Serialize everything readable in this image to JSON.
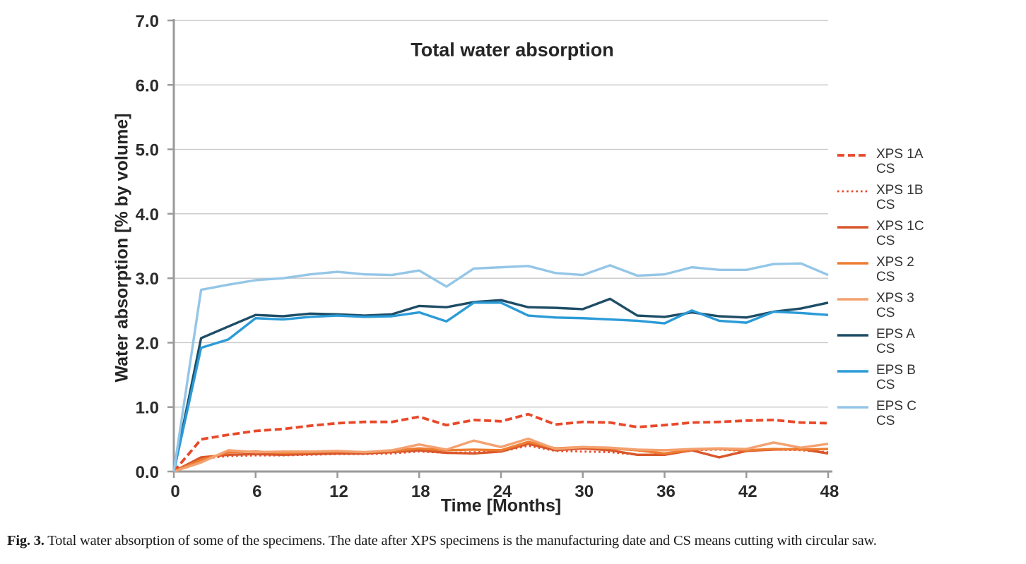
{
  "figure": {
    "caption_label": "Fig. 3.",
    "caption_text": " Total water absorption of some of the specimens. The date after XPS specimens is the manufacturing date and CS means cutting with circular saw."
  },
  "chart_data": {
    "type": "line",
    "title": "Total water absorption",
    "xlabel": "Time [Months]",
    "ylabel": "Water absorption [% by volume]",
    "xlim": [
      0,
      48
    ],
    "ylim": [
      0.0,
      7.0
    ],
    "x_ticks": [
      0,
      6,
      12,
      18,
      24,
      30,
      36,
      42,
      48
    ],
    "y_ticks": [
      "0.0",
      "1.0",
      "2.0",
      "3.0",
      "4.0",
      "5.0",
      "6.0",
      "7.0"
    ],
    "grid": "horizontal gridlines at every 1.0",
    "legend_position": "right",
    "grid_color": "#C7C7C7",
    "axis_color": "#9A9A9A",
    "text_color": "#2B2B2B",
    "x": [
      0,
      2,
      4,
      6,
      8,
      10,
      12,
      14,
      16,
      18,
      20,
      22,
      24,
      26,
      28,
      30,
      32,
      34,
      36,
      38,
      40,
      42,
      44,
      46,
      48
    ],
    "series": [
      {
        "id": "xps-1a",
        "label": "XPS 1A",
        "sublabel": "CS",
        "color": "#E8492A",
        "style": "dashed",
        "values": [
          0,
          0.5,
          0.57,
          0.63,
          0.66,
          0.71,
          0.75,
          0.77,
          0.77,
          0.85,
          0.72,
          0.8,
          0.78,
          0.89,
          0.73,
          0.77,
          0.76,
          0.69,
          0.72,
          0.76,
          0.77,
          0.79,
          0.8,
          0.76,
          0.75
        ]
      },
      {
        "id": "xps-1b",
        "label": "XPS 1B",
        "sublabel": "CS",
        "color": "#E8492A",
        "style": "dotted",
        "values": [
          0,
          0.2,
          0.24,
          0.25,
          0.25,
          0.26,
          0.27,
          0.27,
          0.28,
          0.31,
          0.29,
          0.3,
          0.31,
          0.4,
          0.32,
          0.31,
          0.3,
          0.26,
          0.27,
          0.33,
          0.34,
          0.32,
          0.34,
          0.33,
          0.3
        ]
      },
      {
        "id": "xps-1c",
        "label": "XPS 1C",
        "sublabel": "CS",
        "color": "#D9572B",
        "style": "solid",
        "values": [
          0,
          0.22,
          0.26,
          0.27,
          0.26,
          0.27,
          0.28,
          0.28,
          0.3,
          0.33,
          0.29,
          0.28,
          0.31,
          0.43,
          0.33,
          0.36,
          0.33,
          0.26,
          0.26,
          0.33,
          0.22,
          0.32,
          0.34,
          0.35,
          0.28
        ]
      },
      {
        "id": "xps-2",
        "label": "XPS 2",
        "sublabel": "CS",
        "color": "#ED7D31",
        "style": "solid",
        "values": [
          0,
          0.18,
          0.3,
          0.31,
          0.29,
          0.3,
          0.31,
          0.3,
          0.32,
          0.36,
          0.33,
          0.34,
          0.33,
          0.46,
          0.36,
          0.38,
          0.36,
          0.33,
          0.28,
          0.34,
          0.35,
          0.33,
          0.35,
          0.34,
          0.35
        ]
      },
      {
        "id": "xps-3",
        "label": "XPS 3",
        "sublabel": "CS",
        "color": "#F4A170",
        "style": "solid",
        "values": [
          0,
          0.14,
          0.33,
          0.3,
          0.31,
          0.31,
          0.32,
          0.3,
          0.33,
          0.42,
          0.34,
          0.48,
          0.38,
          0.51,
          0.35,
          0.38,
          0.37,
          0.34,
          0.33,
          0.35,
          0.36,
          0.35,
          0.45,
          0.37,
          0.43
        ]
      },
      {
        "id": "eps-a",
        "label": "EPS A",
        "sublabel": "CS",
        "color": "#1E4D66",
        "style": "solid",
        "values": [
          0,
          2.07,
          2.25,
          2.43,
          2.41,
          2.45,
          2.44,
          2.42,
          2.44,
          2.57,
          2.55,
          2.63,
          2.66,
          2.55,
          2.54,
          2.52,
          2.68,
          2.42,
          2.4,
          2.47,
          2.41,
          2.39,
          2.48,
          2.53,
          2.62
        ]
      },
      {
        "id": "eps-b",
        "label": "EPS B",
        "sublabel": "CS",
        "color": "#2B9BD7",
        "style": "solid",
        "values": [
          0,
          1.92,
          2.05,
          2.38,
          2.36,
          2.4,
          2.42,
          2.4,
          2.41,
          2.47,
          2.33,
          2.62,
          2.62,
          2.42,
          2.39,
          2.38,
          2.36,
          2.34,
          2.3,
          2.5,
          2.34,
          2.31,
          2.48,
          2.46,
          2.43
        ]
      },
      {
        "id": "eps-c",
        "label": "EPS C",
        "sublabel": "CS",
        "color": "#94C6E7",
        "style": "solid",
        "values": [
          0,
          2.82,
          2.9,
          2.97,
          3.0,
          3.06,
          3.1,
          3.06,
          3.05,
          3.12,
          2.87,
          3.15,
          3.17,
          3.19,
          3.08,
          3.05,
          3.2,
          3.04,
          3.06,
          3.17,
          3.13,
          3.13,
          3.22,
          3.23,
          3.05
        ]
      }
    ]
  }
}
